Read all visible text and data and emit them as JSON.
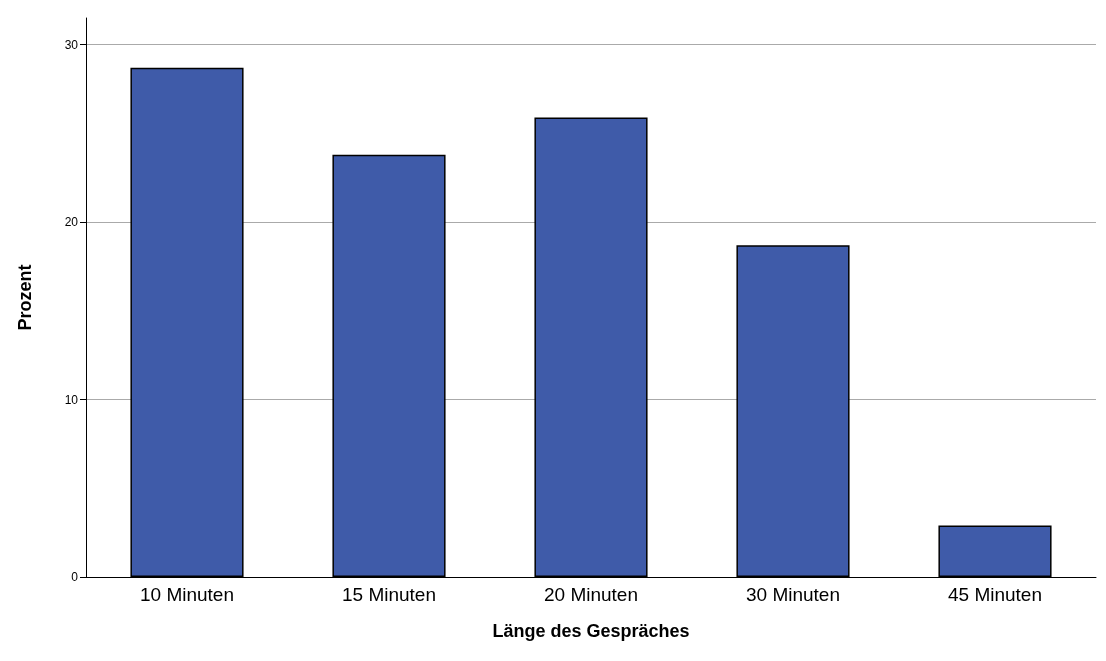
{
  "chart_data": {
    "type": "bar",
    "xlabel": "Länge des Gespräches",
    "ylabel": "Prozent",
    "categories": [
      "10 Minuten",
      "15 Minuten",
      "20 Minuten",
      "30 Minuten",
      "45 Minuten"
    ],
    "values": [
      28.7,
      23.8,
      25.9,
      18.7,
      2.9
    ],
    "color": "#3f5ba9",
    "ylim": [
      0,
      31.5
    ],
    "yticks": [
      0,
      10,
      20,
      30
    ],
    "grid": "y"
  }
}
